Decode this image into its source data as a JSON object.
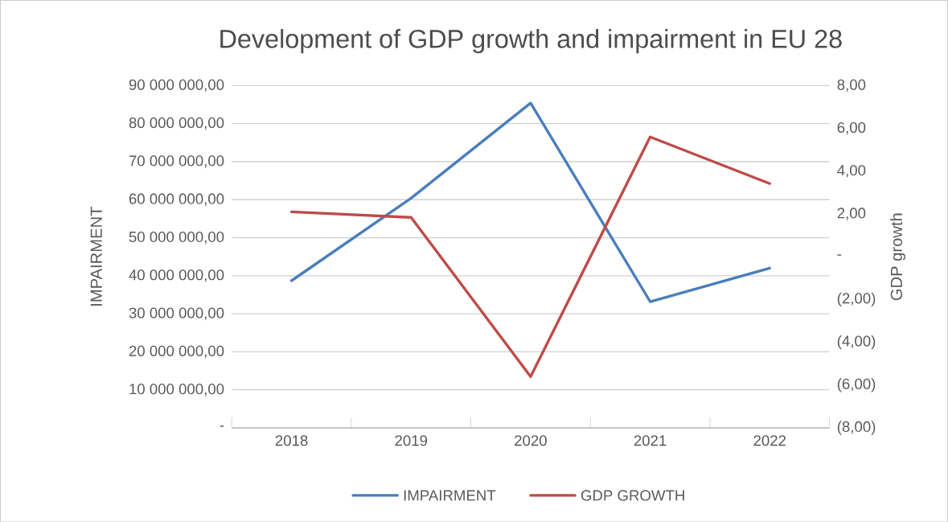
{
  "chart_data": {
    "type": "line",
    "title": "Development of GDP growth and impairment in EU 28",
    "ylabel": "IMPAIRMENT",
    "y2label": "GDP growth",
    "categories": [
      "2018",
      "2019",
      "2020",
      "2021",
      "2022"
    ],
    "series": [
      {
        "name": "IMPAIRMENT",
        "color": "#4a7ebb",
        "values": [
          38700000,
          60400000,
          85400000,
          33200000,
          42000000
        ]
      },
      {
        "name": "GDP GROWTH",
        "color": "#be4b48",
        "values": [
          2.1,
          1.84,
          -5.6,
          5.6,
          3.42
        ],
        "axis": "y2"
      }
    ],
    "ylim": [
      0,
      90000000
    ],
    "yticks": [
      {
        "value": 0,
        "label": "-"
      },
      {
        "value": 10000000,
        "label": "10 000 000,00"
      },
      {
        "value": 20000000,
        "label": "20 000 000,00"
      },
      {
        "value": 30000000,
        "label": "30 000 000,00"
      },
      {
        "value": 40000000,
        "label": "40 000 000,00"
      },
      {
        "value": 50000000,
        "label": "50 000 000,00"
      },
      {
        "value": 60000000,
        "label": "60 000 000,00"
      },
      {
        "value": 70000000,
        "label": "70 000 000,00"
      },
      {
        "value": 80000000,
        "label": "80 000 000,00"
      },
      {
        "value": 90000000,
        "label": "90 000 000,00"
      }
    ],
    "y2lim": [
      -8,
      8
    ],
    "y2ticks": [
      {
        "value": -8,
        "label": "(8,00)"
      },
      {
        "value": -6,
        "label": "(6,00)"
      },
      {
        "value": -4,
        "label": "(4,00)"
      },
      {
        "value": -2,
        "label": "(2,00)"
      },
      {
        "value": 0,
        "label": "-"
      },
      {
        "value": 2,
        "label": "2,00"
      },
      {
        "value": 4,
        "label": "4,00"
      },
      {
        "value": 6,
        "label": "6,00"
      },
      {
        "value": 8,
        "label": "8,00"
      }
    ],
    "grid": "y",
    "legend": "bottom",
    "marker": "none",
    "line_style": "solid"
  }
}
